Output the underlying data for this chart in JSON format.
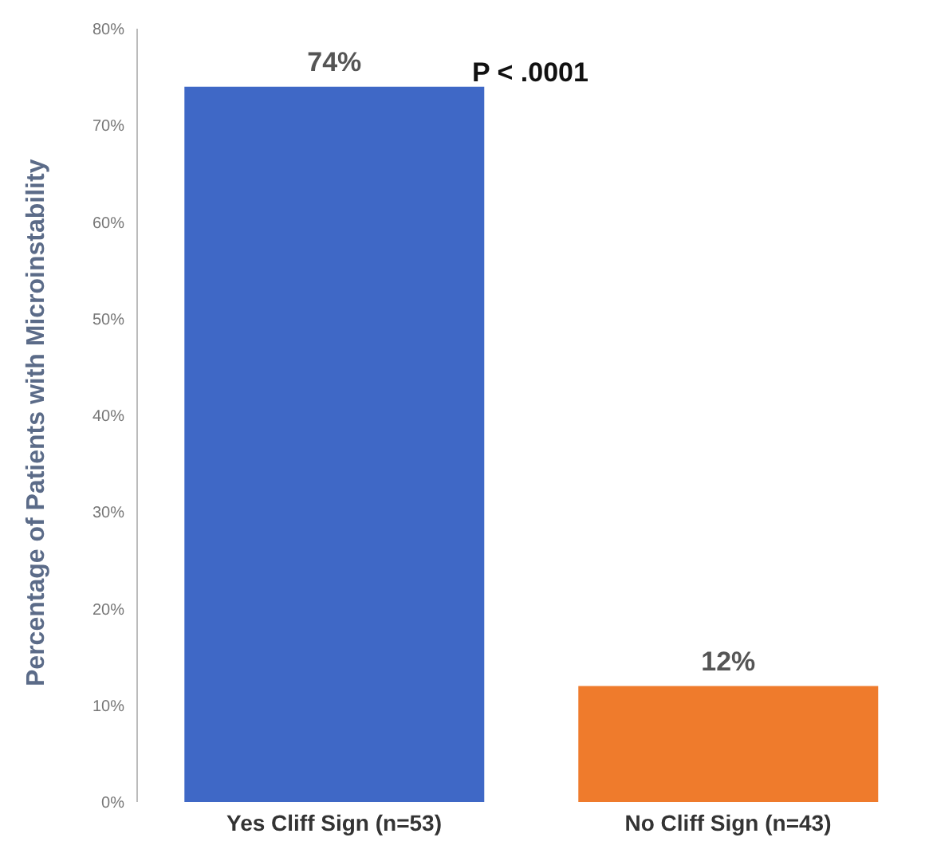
{
  "chart_data": {
    "type": "bar",
    "ylabel": "Percentage of Patients with Microinstability",
    "categories": [
      "Yes Cliff Sign (n=53)",
      "No Cliff Sign (n=43)"
    ],
    "values": [
      74,
      12
    ],
    "colors": [
      "#3f68c6",
      "#ef7b2c"
    ],
    "value_labels": [
      "74%",
      "12%"
    ],
    "ylim": [
      0,
      80
    ],
    "yticks": [
      {
        "value": 0,
        "label": "0%"
      },
      {
        "value": 10,
        "label": "10%"
      },
      {
        "value": 20,
        "label": "20%"
      },
      {
        "value": 30,
        "label": "30%"
      },
      {
        "value": 40,
        "label": "40%"
      },
      {
        "value": 50,
        "label": "50%"
      },
      {
        "value": 60,
        "label": "60%"
      },
      {
        "value": 70,
        "label": "70%"
      },
      {
        "value": 80,
        "label": "80%"
      }
    ],
    "grid": false,
    "annotations": [
      "P < .0001"
    ]
  }
}
